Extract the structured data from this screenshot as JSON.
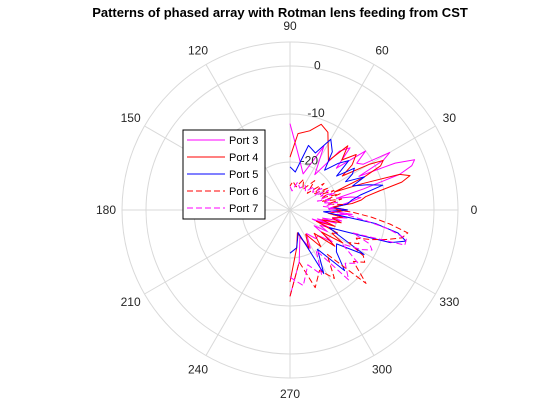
{
  "chart_data": {
    "type": "line",
    "subtype": "polar",
    "title": "Patterns of phased array with Rotman lens feeding from CST",
    "angle_ticks": [
      "0",
      "30",
      "60",
      "90",
      "120",
      "150",
      "180",
      "210",
      "240",
      "270",
      "300",
      "330"
    ],
    "angle_tick_values": [
      0,
      30,
      60,
      90,
      120,
      150,
      180,
      210,
      240,
      270,
      300,
      330
    ],
    "radial_ticks": [
      "-20",
      "-10",
      "0"
    ],
    "radial_tick_values": [
      -20,
      -10,
      0
    ],
    "r_range": [
      -30,
      5
    ],
    "grid": true,
    "legend_position": "upper-left",
    "series": [
      {
        "name": "Port 3",
        "color": "#ff00ff",
        "dash": "solid",
        "angles": [
          -90,
          -80,
          -70,
          -62,
          -55,
          -48,
          -42,
          -37,
          -33,
          -30,
          -27,
          -24,
          -22,
          -20,
          -18,
          -16,
          -14,
          -12,
          -10,
          -8,
          -6,
          -4,
          -2,
          0,
          2,
          4,
          6,
          8,
          10,
          12,
          14,
          16,
          18,
          20,
          22,
          24,
          26,
          28,
          30,
          32,
          35,
          38,
          42,
          46,
          50,
          55,
          62,
          70,
          80,
          90
        ],
        "values": [
          -12,
          -19,
          -24,
          -21,
          -24,
          -22,
          -22,
          -19,
          -24,
          -21,
          -23,
          -21,
          -25,
          -21,
          -24,
          -20,
          -23,
          -19,
          -21,
          -18,
          -21,
          -17,
          -21,
          -18,
          -22,
          -21,
          -19,
          -17,
          -15,
          -17,
          -20,
          -14,
          -6,
          -3,
          -2,
          -6,
          -14,
          -8,
          -6,
          -12,
          -13,
          -10,
          -17,
          -12,
          -14,
          -21,
          -15,
          -22,
          -19,
          -12
        ]
      },
      {
        "name": "Port 4",
        "color": "#ff0000",
        "dash": "solid",
        "angles": [
          -90,
          -80,
          -72,
          -64,
          -57,
          -50,
          -44,
          -39,
          -35,
          -32,
          -29,
          -26,
          -23,
          -20,
          -17,
          -14,
          -11,
          -8,
          -5,
          -2,
          0,
          2,
          4,
          6,
          8,
          10,
          12,
          14,
          16,
          18,
          20,
          22,
          24,
          26,
          28,
          30,
          33,
          36,
          40,
          44,
          48,
          52,
          58,
          64,
          70,
          76,
          84,
          90
        ],
        "values": [
          -15,
          -22,
          -25,
          -21,
          -24,
          -20,
          -23,
          -18,
          -22,
          -17,
          -20,
          -19,
          -24,
          -20,
          -23,
          -19,
          -21,
          -19,
          -22,
          -20,
          -18,
          -20,
          -21,
          -17,
          -15,
          -14,
          -11,
          -6,
          -4,
          -6,
          -14,
          -20,
          -13,
          -9,
          -8,
          -11,
          -17,
          -14,
          -12,
          -15,
          -12,
          -17,
          -15,
          -12,
          -11,
          -13,
          -14,
          -19
        ]
      },
      {
        "name": "Port 5",
        "color": "#0000ff",
        "dash": "solid",
        "angles": [
          -90,
          -80,
          -70,
          -62,
          -55,
          -48,
          -42,
          -36,
          -31,
          -27,
          -24,
          -21,
          -18,
          -15,
          -12,
          -9,
          -6,
          -3,
          0,
          3,
          6,
          9,
          12,
          15,
          18,
          21,
          24,
          27,
          30,
          33,
          36,
          40,
          44,
          49,
          54,
          60,
          66,
          74,
          82,
          90
        ],
        "values": [
          -21,
          -22,
          -25,
          -15,
          -20,
          -13,
          -17,
          -18,
          -12,
          -19,
          -21,
          -17,
          -8,
          -5,
          -7,
          -12,
          -20,
          -23,
          -18,
          -21,
          -18,
          -17,
          -15,
          -10,
          -13,
          -16,
          -13,
          -17,
          -15,
          -14,
          -18,
          -14,
          -16,
          -19,
          -15,
          -13,
          -17,
          -16,
          -22,
          -21
        ]
      },
      {
        "name": "Port 6",
        "color": "#ff0000",
        "dash": "dashed",
        "angles": [
          -90,
          -80,
          -72,
          -64,
          -57,
          -50,
          -44,
          -39,
          -35,
          -32,
          -29,
          -26,
          -23,
          -20,
          -17,
          -14,
          -11,
          -8,
          -5,
          -2,
          0,
          3,
          6,
          9,
          12,
          15,
          18,
          21,
          24,
          27,
          30,
          34,
          38,
          44,
          50,
          58,
          66,
          75,
          84,
          90
        ],
        "values": [
          -12,
          -19,
          -13,
          -16,
          -13,
          -18,
          -8,
          -13,
          -11,
          -12,
          -16,
          -14,
          -15,
          -12,
          -9,
          -6,
          -5,
          -9,
          -13,
          -17,
          -20,
          -21,
          -19,
          -22,
          -19,
          -23,
          -19,
          -23,
          -20,
          -23,
          -21,
          -24,
          -21,
          -25,
          -22,
          -25,
          -23,
          -25,
          -24,
          -25
        ]
      },
      {
        "name": "Port 7",
        "color": "#ff00ff",
        "dash": "dashed",
        "angles": [
          -90,
          -80,
          -72,
          -64,
          -57,
          -50,
          -44,
          -38,
          -33,
          -29,
          -26,
          -23,
          -20,
          -17,
          -14,
          -11,
          -8,
          -5,
          -2,
          0,
          3,
          6,
          9,
          12,
          15,
          18,
          21,
          24,
          27,
          30,
          34,
          38,
          44,
          50,
          58,
          66,
          75,
          84,
          90
        ],
        "values": [
          -16,
          -14,
          -18,
          -15,
          -20,
          -11,
          -14,
          -12,
          -17,
          -13,
          -11,
          -12,
          -16,
          -5,
          -5,
          -9,
          -14,
          -18,
          -21,
          -22,
          -21,
          -23,
          -20,
          -23,
          -21,
          -24,
          -20,
          -23,
          -21,
          -24,
          -22,
          -24,
          -23,
          -25,
          -24,
          -25,
          -24,
          -26,
          -25
        ]
      }
    ]
  }
}
